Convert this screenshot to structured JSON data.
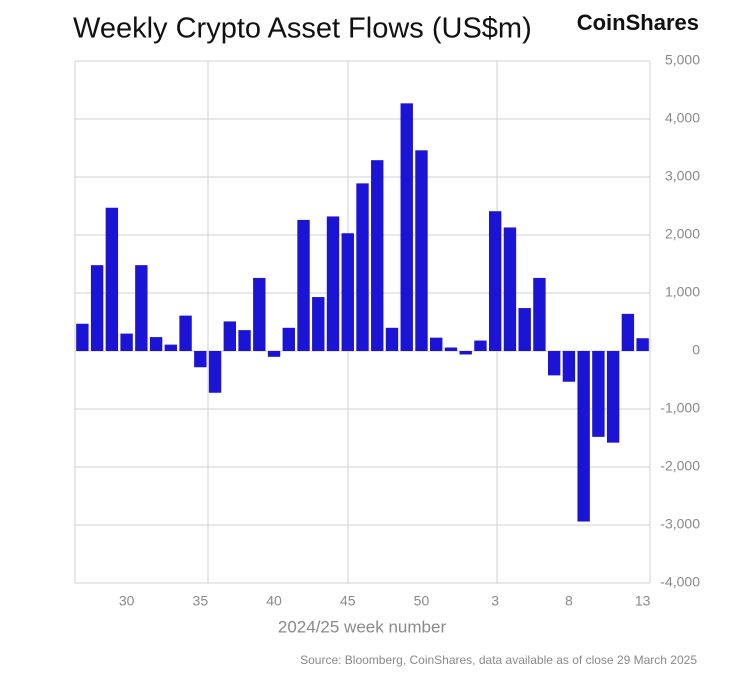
{
  "brand": "CoinShares",
  "source": "Source: Bloomberg, CoinShares, data available as of close 29 March 2025",
  "chart_data": {
    "type": "bar",
    "title": "Weekly Crypto Asset Flows (US$m)",
    "x_label": "2024/25 week number",
    "color": "#1c14d4",
    "grid": true,
    "y_axis_side": "right",
    "categories": [
      null,
      null,
      null,
      "30",
      null,
      null,
      null,
      null,
      "35",
      null,
      null,
      null,
      null,
      "40",
      null,
      null,
      null,
      null,
      "45",
      null,
      null,
      null,
      null,
      "50",
      null,
      null,
      null,
      null,
      "3",
      null,
      null,
      null,
      null,
      "8",
      null,
      null,
      null,
      null,
      "13"
    ],
    "values": [
      470,
      1480,
      2470,
      300,
      1480,
      240,
      110,
      610,
      -280,
      -720,
      510,
      360,
      1260,
      -100,
      400,
      2260,
      930,
      2320,
      2030,
      2890,
      3290,
      400,
      4270,
      3460,
      230,
      60,
      -60,
      180,
      2410,
      2130,
      740,
      1260,
      -420,
      -530,
      -2940,
      -1480,
      -1580,
      640,
      220
    ],
    "ylim": [
      -4000,
      5000
    ],
    "yticks": [
      {
        "value": 5000,
        "label": "5,000"
      },
      {
        "value": 4000,
        "label": "4,000"
      },
      {
        "value": 3000,
        "label": "3,000"
      },
      {
        "value": 2000,
        "label": "2,000"
      },
      {
        "value": 1000,
        "label": "1,000"
      },
      0,
      {
        "value": -1000,
        "label": "-1,000"
      },
      {
        "value": -2000,
        "label": "-2,000"
      },
      {
        "value": -3000,
        "label": "-3,000"
      },
      {
        "value": -4000,
        "label": "-4,000"
      }
    ]
  }
}
